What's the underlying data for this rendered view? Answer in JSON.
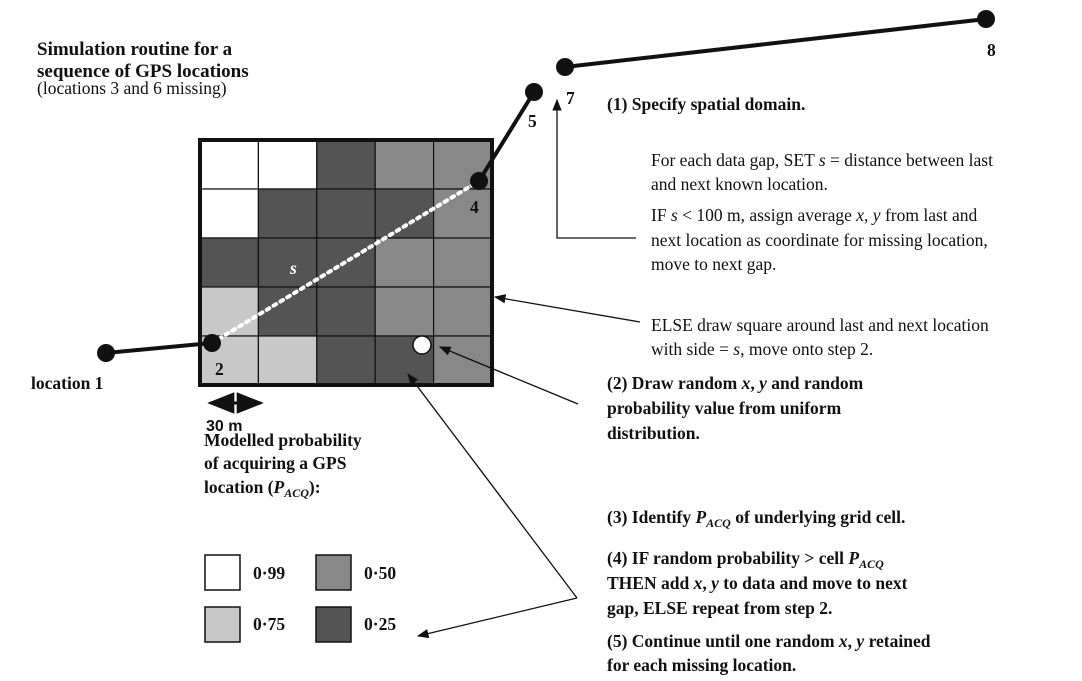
{
  "title": {
    "lines": [
      "Simulation routine for a",
      "sequence of GPS locations"
    ],
    "subtitle": "(locations 3 and 6 missing)"
  },
  "map": {
    "points": [
      "location 1",
      "2",
      "4",
      "5",
      "7",
      "8"
    ],
    "distance_label": "s",
    "scale": "30 m"
  },
  "legend": {
    "title": [
      [
        "Modelled probability"
      ],
      [
        "of acquiring a GPS"
      ],
      [
        "location (",
        "P",
        "ACQ",
        "):"
      ]
    ],
    "items": [
      "0·99",
      "0·50",
      "0·75",
      "0·25"
    ]
  },
  "steps": [
    [
      [
        "(1) Specify spatial domain."
      ]
    ],
    [
      [
        "For each data gap, SET ",
        "s",
        " = distance between last"
      ],
      [
        "and next known location."
      ]
    ],
    [
      [
        "IF ",
        "s",
        " < 100 m, assign average ",
        "x",
        ", ",
        "y",
        " from last and"
      ],
      [
        "next location as coordinate for missing location,"
      ],
      [
        "move to next gap."
      ]
    ],
    [
      [
        "ELSE draw square around last and next location"
      ],
      [
        "with side = ",
        "s",
        ", move onto step 2."
      ]
    ],
    [
      [
        "(2) Draw random ",
        "x",
        ", ",
        "y",
        " and random"
      ],
      [
        "probability value from uniform"
      ],
      [
        "distribution."
      ]
    ],
    [
      [
        "(3) Identify ",
        "P",
        "ACQ",
        " of underlying grid cell."
      ]
    ],
    [
      [
        "(4) IF random probability > cell ",
        "P",
        "ACQ"
      ],
      [
        "THEN add ",
        "x",
        ", ",
        "y",
        " to data and move to next"
      ],
      [
        "gap, ELSE repeat from step 2."
      ]
    ],
    [
      [
        "(5) Continue until one random ",
        "x",
        ", ",
        "y",
        " retained"
      ],
      [
        "for each missing location."
      ]
    ]
  ]
}
